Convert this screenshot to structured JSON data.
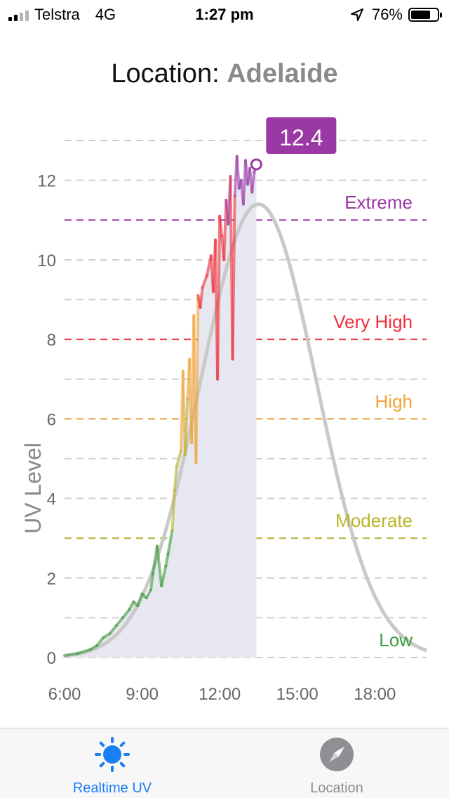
{
  "status_bar": {
    "carrier": "Telstra",
    "network": "4G",
    "time": "1:27 pm",
    "battery": "76%",
    "battery_level": 0.76
  },
  "header": {
    "label": "Location:",
    "city": "Adelaide"
  },
  "chart_data": {
    "type": "line",
    "title": "",
    "xlabel": "",
    "ylabel": "UV Level",
    "xlim": [
      "6:00",
      "20:00"
    ],
    "ylim": [
      0,
      13
    ],
    "x_ticks": [
      "6:00",
      "9:00",
      "12:00",
      "15:00",
      "18:00"
    ],
    "y_ticks": [
      "0",
      "2",
      "4",
      "6",
      "8",
      "10",
      "12"
    ],
    "grid": true,
    "current_value": "12.4",
    "current_time": "13:25",
    "bands": [
      {
        "name": "Low",
        "value": 0,
        "color": "#3c9b3c"
      },
      {
        "name": "Moderate",
        "value": 3,
        "color": "#b9b52c"
      },
      {
        "name": "High",
        "value": 6,
        "color": "#f0a437"
      },
      {
        "name": "Very High",
        "value": 8,
        "color": "#ee2f3a"
      },
      {
        "name": "Extreme",
        "value": 11,
        "color": "#9a38a5"
      }
    ],
    "series": [
      {
        "type": "measured",
        "x": [
          "6:00",
          "6:30",
          "7:00",
          "7:15",
          "7:30",
          "7:45",
          "8:00",
          "8:15",
          "8:30",
          "8:40",
          "8:50",
          "9:00",
          "9:10",
          "9:20",
          "9:25",
          "9:35",
          "9:45",
          "9:55",
          "10:00",
          "10:10",
          "10:15",
          "10:20",
          "10:30",
          "10:35",
          "10:40",
          "10:45",
          "10:50",
          "10:55",
          "11:00",
          "11:05",
          "11:10",
          "11:15",
          "11:20",
          "11:30",
          "11:40",
          "11:45",
          "11:50",
          "11:55",
          "12:00",
          "12:05",
          "12:10",
          "12:15",
          "12:20",
          "12:25",
          "12:30",
          "12:35",
          "12:40",
          "12:45",
          "12:50",
          "12:55",
          "13:00",
          "13:05",
          "13:10",
          "13:15",
          "13:20",
          "13:25"
        ],
        "y": [
          0.05,
          0.1,
          0.2,
          0.3,
          0.5,
          0.6,
          0.8,
          1.0,
          1.2,
          1.4,
          1.3,
          1.6,
          1.5,
          1.7,
          2.1,
          2.8,
          1.8,
          2.3,
          2.6,
          3.2,
          4.2,
          4.8,
          5.2,
          7.2,
          5.1,
          6.5,
          7.5,
          5.4,
          8.6,
          4.9,
          9.1,
          8.8,
          9.3,
          9.6,
          10.1,
          9.2,
          10.5,
          7.0,
          11.1,
          10.6,
          10.0,
          11.5,
          10.9,
          12.1,
          7.5,
          11.6,
          12.6,
          11.8,
          12.0,
          11.4,
          12.5,
          11.9,
          12.3,
          11.7,
          12.2,
          12.4
        ]
      },
      {
        "type": "forecast",
        "peak": 11.4,
        "peak_time": "13:30"
      }
    ]
  },
  "tabs": [
    {
      "label": "Realtime UV",
      "icon": "sun-icon",
      "active": true
    },
    {
      "label": "Location",
      "icon": "compass-icon",
      "active": false
    }
  ],
  "colors": {
    "accent": "#1a7ef5",
    "callout": "#9a38a5",
    "forecast": "#c9c9c9",
    "fill": "#e6e7f1"
  }
}
